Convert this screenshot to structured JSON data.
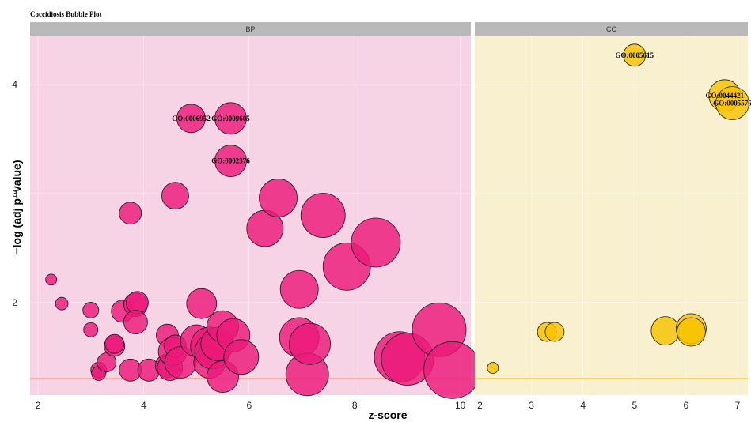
{
  "chart_data": {
    "type": "scatter",
    "title": "Coccidiosis Bubble Plot",
    "xlabel": "z-score",
    "ylabel": "−log (adj p−value)",
    "grid": true,
    "threshold_y": 1.3,
    "panels": [
      {
        "name": "BP",
        "background": "#f7d3e6",
        "fill": "#ec1a7a",
        "threshold_color": "#f08a5d",
        "xlim": [
          1.85,
          10.2
        ],
        "ylim": [
          1.15,
          4.45
        ],
        "xticks": [
          2,
          4,
          6,
          8,
          10
        ],
        "yticks": [
          2,
          3,
          4
        ],
        "points": [
          {
            "x": 2.25,
            "y": 2.21,
            "r": 0.35
          },
          {
            "x": 2.45,
            "y": 1.99,
            "r": 0.4
          },
          {
            "x": 3.0,
            "y": 1.93,
            "r": 0.5
          },
          {
            "x": 3.0,
            "y": 1.75,
            "r": 0.45
          },
          {
            "x": 3.15,
            "y": 1.38,
            "r": 0.5
          },
          {
            "x": 3.15,
            "y": 1.35,
            "r": 0.45
          },
          {
            "x": 3.3,
            "y": 1.45,
            "r": 0.6
          },
          {
            "x": 3.45,
            "y": 1.6,
            "r": 0.65
          },
          {
            "x": 3.45,
            "y": 1.62,
            "r": 0.6
          },
          {
            "x": 3.6,
            "y": 1.92,
            "r": 0.7
          },
          {
            "x": 3.75,
            "y": 2.82,
            "r": 0.7
          },
          {
            "x": 3.75,
            "y": 1.38,
            "r": 0.7
          },
          {
            "x": 3.85,
            "y": 1.98,
            "r": 0.75
          },
          {
            "x": 3.88,
            "y": 2.0,
            "r": 0.7
          },
          {
            "x": 3.85,
            "y": 1.82,
            "r": 0.75
          },
          {
            "x": 4.1,
            "y": 1.38,
            "r": 0.7
          },
          {
            "x": 4.45,
            "y": 1.7,
            "r": 0.7
          },
          {
            "x": 4.45,
            "y": 1.42,
            "r": 0.75
          },
          {
            "x": 4.5,
            "y": 1.4,
            "r": 0.8
          },
          {
            "x": 4.55,
            "y": 1.55,
            "r": 0.9
          },
          {
            "x": 4.6,
            "y": 1.6,
            "r": 0.7
          },
          {
            "x": 4.6,
            "y": 2.98,
            "r": 0.85
          },
          {
            "x": 4.7,
            "y": 1.45,
            "r": 1.0
          },
          {
            "x": 4.9,
            "y": 3.69,
            "r": 0.9,
            "label": "GO:0006952"
          },
          {
            "x": 5.0,
            "y": 1.65,
            "r": 1.0
          },
          {
            "x": 5.1,
            "y": 1.99,
            "r": 0.95
          },
          {
            "x": 5.25,
            "y": 1.6,
            "r": 1.2
          },
          {
            "x": 5.25,
            "y": 1.45,
            "r": 1.0
          },
          {
            "x": 5.3,
            "y": 1.55,
            "r": 1.1
          },
          {
            "x": 5.4,
            "y": 1.62,
            "r": 1.05
          },
          {
            "x": 5.5,
            "y": 1.32,
            "r": 1.0
          },
          {
            "x": 5.5,
            "y": 1.78,
            "r": 1.0
          },
          {
            "x": 5.65,
            "y": 3.69,
            "r": 1.0,
            "label": "GO:0009605"
          },
          {
            "x": 5.65,
            "y": 3.3,
            "r": 1.0,
            "label": "GO:0002376"
          },
          {
            "x": 5.7,
            "y": 1.7,
            "r": 1.05
          },
          {
            "x": 5.85,
            "y": 1.5,
            "r": 1.1
          },
          {
            "x": 6.3,
            "y": 2.68,
            "r": 1.15
          },
          {
            "x": 6.55,
            "y": 2.96,
            "r": 1.2
          },
          {
            "x": 6.95,
            "y": 2.12,
            "r": 1.2
          },
          {
            "x": 6.95,
            "y": 1.68,
            "r": 1.25
          },
          {
            "x": 7.1,
            "y": 1.34,
            "r": 1.35
          },
          {
            "x": 7.15,
            "y": 1.62,
            "r": 1.3
          },
          {
            "x": 7.4,
            "y": 2.8,
            "r": 1.4
          },
          {
            "x": 7.85,
            "y": 2.33,
            "r": 1.5
          },
          {
            "x": 8.4,
            "y": 2.55,
            "r": 1.55
          },
          {
            "x": 8.85,
            "y": 1.5,
            "r": 1.6
          },
          {
            "x": 9.0,
            "y": 1.48,
            "r": 1.65
          },
          {
            "x": 9.6,
            "y": 1.75,
            "r": 1.7
          },
          {
            "x": 9.85,
            "y": 1.38,
            "r": 1.8
          }
        ]
      },
      {
        "name": "CC",
        "background": "#f8f0cf",
        "fill": "#f6c200",
        "threshold_color": "#f5c000",
        "xlim": [
          1.9,
          7.2
        ],
        "ylim": [
          1.15,
          4.45
        ],
        "xticks": [
          2,
          3,
          4,
          5,
          6,
          7
        ],
        "yticks": [
          2,
          3,
          4
        ],
        "points": [
          {
            "x": 2.25,
            "y": 1.4,
            "r": 0.35
          },
          {
            "x": 3.3,
            "y": 1.73,
            "r": 0.6
          },
          {
            "x": 3.45,
            "y": 1.73,
            "r": 0.6
          },
          {
            "x": 5.0,
            "y": 4.27,
            "r": 0.7,
            "label": "GO:0005615"
          },
          {
            "x": 5.6,
            "y": 1.74,
            "r": 0.9
          },
          {
            "x": 6.1,
            "y": 1.76,
            "r": 0.95
          },
          {
            "x": 6.1,
            "y": 1.73,
            "r": 0.9
          },
          {
            "x": 6.75,
            "y": 3.9,
            "r": 1.0,
            "label": "GO:0044421"
          },
          {
            "x": 6.9,
            "y": 3.83,
            "r": 1.05,
            "label": "GO:0005576"
          }
        ]
      }
    ]
  }
}
